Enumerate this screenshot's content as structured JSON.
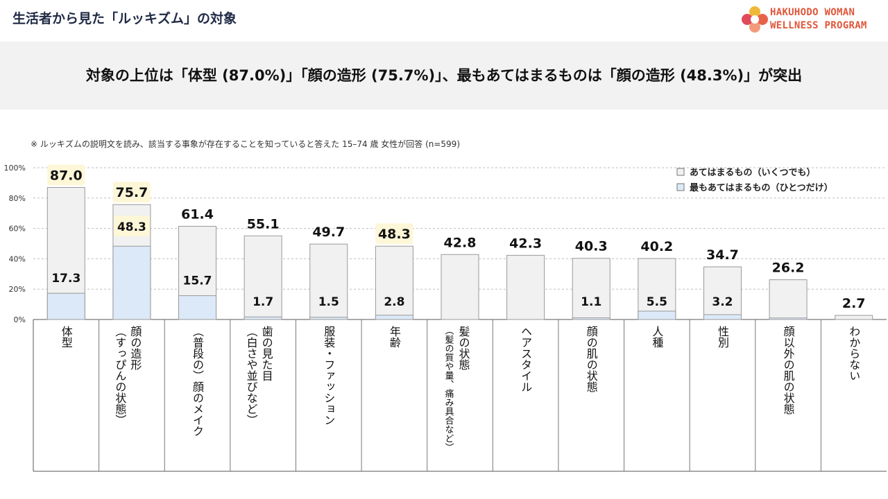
{
  "header": {
    "title": "生活者から見た「ルッキズム」の対象",
    "logo_line1": "HAKUHODO WOMAN",
    "logo_line2": "WELLNESS PROGRAM"
  },
  "banner": {
    "headline": "対象の上位は「体型 (87.0%)」「顔の造形 (75.7%)」、最もあてはまるものは「顔の造形 (48.3%)」が突出"
  },
  "note": "※ ルッキズムの説明文を読み、該当する事象が存在することを知っていると答えた 15–74 歳 女性が回答 (n=599)",
  "colors": {
    "any_fill": "#f1f1f1",
    "most_fill": "#dce9f8",
    "bar_stroke": "#999999",
    "highlight": "#fdf7d8",
    "title": "#1f2a44",
    "logo": "#e0563a"
  },
  "chart_data": {
    "type": "bar",
    "ylim": [
      0,
      100
    ],
    "yticks": [
      "0%",
      "20%",
      "40%",
      "60%",
      "80%",
      "100%"
    ],
    "grid": "dashed-horizontal",
    "legend_position": "top-right",
    "categories": [
      [
        "体型"
      ],
      [
        "顔の造形",
        "（すっぴんの状態）"
      ],
      [
        "（普段の）顔のメイク"
      ],
      [
        "歯の見た目",
        "（白さや並びなど）"
      ],
      [
        "服装・ファッション"
      ],
      [
        "年齢"
      ],
      [
        "髪の状態",
        "（髪の質や量、痛み具合など）"
      ],
      [
        "ヘアスタイル"
      ],
      [
        "顔の肌の状態"
      ],
      [
        "人種"
      ],
      [
        "性別"
      ],
      [
        "顔以外の肌の状態"
      ],
      [
        "わからない"
      ]
    ],
    "series": [
      {
        "name": "あてはまるもの（いくつでも）",
        "values": [
          87.0,
          75.7,
          61.4,
          55.1,
          49.7,
          48.3,
          42.8,
          42.3,
          40.3,
          40.2,
          34.7,
          26.2,
          2.7
        ],
        "labels": [
          "87.0",
          "75.7",
          "61.4",
          "55.1",
          "49.7",
          "48.3",
          "42.8",
          "42.3",
          "40.3",
          "40.2",
          "34.7",
          "26.2",
          "2.7"
        ]
      },
      {
        "name": "最もあてはまるもの（ひとつだけ）",
        "values": [
          17.3,
          48.3,
          15.7,
          1.7,
          1.5,
          2.8,
          0,
          0,
          1.1,
          5.5,
          3.2,
          1.0,
          0
        ],
        "labels": [
          "17.3",
          "48.3",
          "15.7",
          "1.7",
          "1.5",
          "2.8",
          "",
          "",
          "1.1",
          "5.5",
          "3.2",
          "",
          ""
        ]
      }
    ],
    "highlighted_labels": [
      "87.0",
      "75.7",
      "48.3"
    ]
  }
}
